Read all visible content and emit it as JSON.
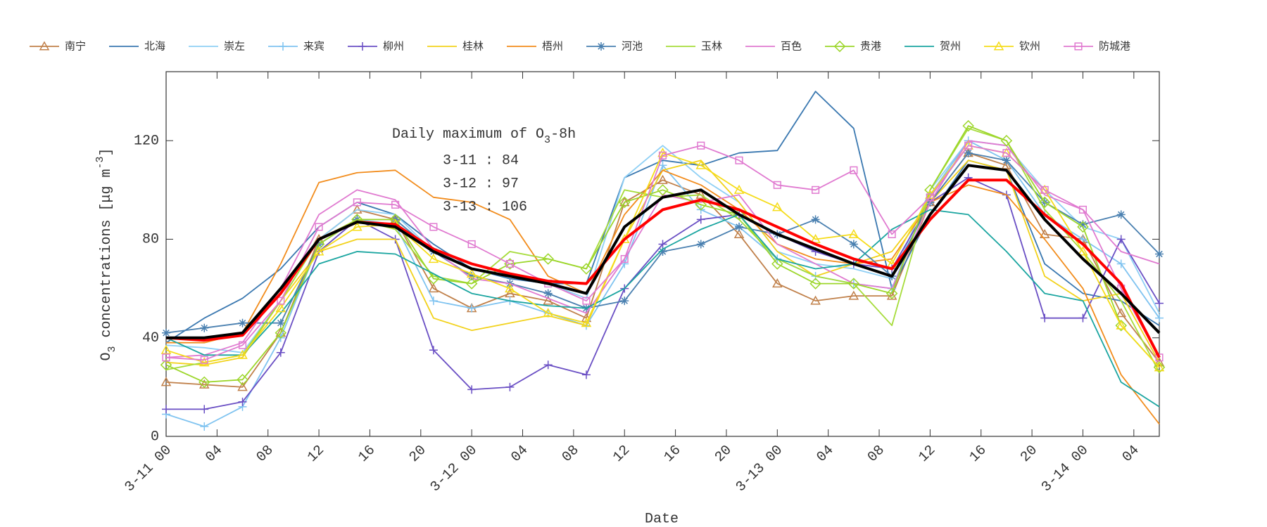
{
  "chart_data": {
    "type": "line",
    "x": [
      0,
      3,
      6,
      9,
      12,
      15,
      18,
      21,
      24,
      27,
      30,
      33,
      36,
      39,
      42,
      45,
      48,
      51,
      54,
      57,
      60,
      63,
      66,
      69,
      72,
      75,
      78
    ],
    "xlim": [
      0,
      78
    ],
    "xticks": [
      {
        "value": 0,
        "label": "3-11 00"
      },
      {
        "value": 4,
        "label": "04"
      },
      {
        "value": 8,
        "label": "08"
      },
      {
        "value": 12,
        "label": "12"
      },
      {
        "value": 16,
        "label": "16"
      },
      {
        "value": 20,
        "label": "20"
      },
      {
        "value": 24,
        "label": "3-12 00"
      },
      {
        "value": 28,
        "label": "04"
      },
      {
        "value": 32,
        "label": "08"
      },
      {
        "value": 36,
        "label": "12"
      },
      {
        "value": 40,
        "label": "16"
      },
      {
        "value": 44,
        "label": "20"
      },
      {
        "value": 48,
        "label": "3-13 00"
      },
      {
        "value": 52,
        "label": "04"
      },
      {
        "value": 56,
        "label": "08"
      },
      {
        "value": 60,
        "label": "12"
      },
      {
        "value": 64,
        "label": "16"
      },
      {
        "value": 68,
        "label": "20"
      },
      {
        "value": 72,
        "label": "3-14 00"
      },
      {
        "value": 76,
        "label": "04"
      }
    ],
    "ylim": [
      0,
      148
    ],
    "yticks": [
      0,
      40,
      80,
      120
    ],
    "xlabel": "Date",
    "ylabel_parts": [
      "O",
      "3",
      " concentrations [μg m",
      "-3",
      "]"
    ],
    "legend": "top",
    "annotation": {
      "title_parts": [
        "Daily maximum of O",
        "3",
        "-8h"
      ],
      "lines": [
        "3-11 : 84",
        "3-12 : 97",
        "3-13 : 106"
      ]
    },
    "series": [
      {
        "name": "南宁",
        "color": "#c0804a",
        "marker": "triangle",
        "values": [
          22,
          21,
          20,
          42,
          80,
          92,
          88,
          60,
          52,
          58,
          55,
          48,
          95,
          104,
          98,
          82,
          62,
          55,
          57,
          57,
          95,
          115,
          110,
          82,
          80,
          50,
          30
        ]
      },
      {
        "name": "北海",
        "color": "#3a78b0",
        "marker": "none",
        "values": [
          38,
          48,
          56,
          68,
          85,
          95,
          90,
          78,
          68,
          64,
          62,
          62,
          105,
          112,
          110,
          115,
          116,
          140,
          125,
          60,
          90,
          112,
          108,
          70,
          58,
          55,
          45
        ]
      },
      {
        "name": "崇左",
        "color": "#8fd0f5",
        "marker": "none",
        "values": [
          37,
          36,
          34,
          55,
          80,
          92,
          90,
          75,
          70,
          66,
          62,
          56,
          105,
          118,
          105,
          95,
          75,
          70,
          68,
          64,
          100,
          120,
          118,
          100,
          85,
          80,
          50
        ]
      },
      {
        "name": "来宾",
        "color": "#7fc3f0",
        "marker": "plus",
        "values": [
          9,
          4,
          12,
          40,
          78,
          88,
          86,
          55,
          52,
          55,
          50,
          45,
          70,
          110,
          92,
          85,
          72,
          65,
          62,
          60,
          98,
          120,
          112,
          90,
          80,
          70,
          48
        ]
      },
      {
        "name": "柳州",
        "color": "#6a4fc4",
        "marker": "plus",
        "values": [
          11,
          11,
          14,
          34,
          75,
          88,
          80,
          35,
          19,
          20,
          29,
          25,
          60,
          78,
          88,
          90,
          82,
          75,
          70,
          68,
          95,
          105,
          98,
          48,
          48,
          80,
          54
        ]
      },
      {
        "name": "桂林",
        "color": "#f2d21c",
        "marker": "none",
        "values": [
          30,
          29,
          32,
          55,
          75,
          80,
          80,
          48,
          43,
          46,
          49,
          45,
          80,
          108,
          112,
          95,
          75,
          65,
          70,
          75,
          95,
          112,
          108,
          65,
          55,
          58,
          30
        ]
      },
      {
        "name": "梧州",
        "color": "#f28c1c",
        "marker": "none",
        "values": [
          38,
          38,
          42,
          70,
          103,
          107,
          108,
          97,
          95,
          88,
          65,
          58,
          90,
          108,
          102,
          92,
          78,
          72,
          70,
          72,
          95,
          102,
          98,
          80,
          60,
          25,
          5
        ]
      },
      {
        "name": "河池",
        "color": "#4a80b0",
        "marker": "asterisk",
        "values": [
          42,
          44,
          46,
          46,
          78,
          88,
          88,
          75,
          65,
          62,
          58,
          52,
          55,
          75,
          78,
          85,
          82,
          88,
          78,
          65,
          95,
          115,
          112,
          95,
          86,
          90,
          74
        ]
      },
      {
        "name": "玉林",
        "color": "#a6dc3a",
        "marker": "none",
        "values": [
          27,
          30,
          33,
          55,
          80,
          88,
          84,
          65,
          62,
          75,
          72,
          68,
          100,
          97,
          98,
          88,
          72,
          65,
          62,
          45,
          100,
          125,
          120,
          92,
          75,
          55,
          26
        ]
      },
      {
        "name": "百色",
        "color": "#e07ad0",
        "marker": "none",
        "values": [
          32,
          33,
          38,
          60,
          90,
          100,
          96,
          76,
          64,
          62,
          56,
          50,
          72,
          98,
          95,
          98,
          78,
          70,
          62,
          60,
          95,
          120,
          118,
          98,
          92,
          75,
          70
        ]
      },
      {
        "name": "贵港",
        "color": "#9cd62a",
        "marker": "diamond",
        "values": [
          29,
          22,
          23,
          42,
          78,
          88,
          88,
          64,
          62,
          70,
          72,
          68,
          95,
          100,
          94,
          90,
          70,
          62,
          62,
          58,
          100,
          126,
          120,
          95,
          85,
          45,
          28
        ]
      },
      {
        "name": "贺州",
        "color": "#1aa5a0",
        "marker": "none",
        "values": [
          40,
          33,
          33,
          50,
          70,
          75,
          74,
          66,
          58,
          55,
          53,
          52,
          60,
          76,
          84,
          90,
          72,
          68,
          70,
          84,
          92,
          90,
          75,
          58,
          55,
          22,
          12
        ]
      },
      {
        "name": "钦州",
        "color": "#f5dc1a",
        "marker": "triangle",
        "values": [
          35,
          30,
          33,
          52,
          75,
          85,
          86,
          72,
          66,
          60,
          50,
          46,
          80,
          115,
          110,
          100,
          93,
          80,
          82,
          70,
          98,
          118,
          115,
          100,
          75,
          45,
          28
        ]
      },
      {
        "name": "防城港",
        "color": "#e07ad0",
        "marker": "square",
        "values": [
          32,
          31,
          37,
          55,
          85,
          95,
          94,
          85,
          78,
          70,
          62,
          55,
          72,
          114,
          118,
          112,
          102,
          100,
          108,
          82,
          97,
          118,
          115,
          100,
          92,
          60,
          32
        ]
      },
      {
        "color": "#ff0000",
        "marker": "none",
        "line_width": 4,
        "values": [
          40,
          39,
          41,
          58,
          80,
          87,
          86,
          76,
          70,
          66,
          63,
          62,
          80,
          92,
          96,
          92,
          85,
          78,
          72,
          68,
          88,
          104,
          104,
          90,
          78,
          62,
          32
        ]
      },
      {
        "color": "#000000",
        "marker": "none",
        "line_width": 4,
        "values": [
          40,
          40,
          42,
          60,
          80,
          87,
          85,
          75,
          68,
          65,
          62,
          58,
          85,
          97,
          100,
          90,
          82,
          76,
          70,
          65,
          90,
          110,
          108,
          88,
          72,
          58,
          42
        ]
      }
    ]
  }
}
